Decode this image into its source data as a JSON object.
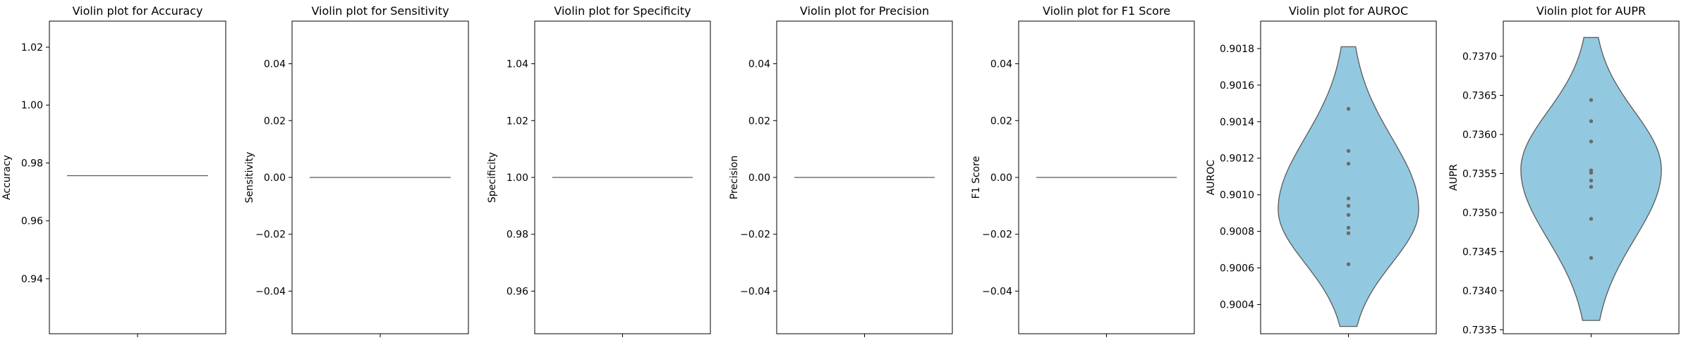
{
  "chart_data": [
    {
      "type": "violin",
      "title": "Violin plot for Accuracy",
      "ylabel": "Accuracy",
      "ylim": [
        0.921,
        1.029
      ],
      "yticks": [
        0.94,
        0.96,
        0.98,
        1.0,
        1.02
      ],
      "ytick_labels": [
        "0.94",
        "0.96",
        "0.98",
        "1.00",
        "1.02"
      ],
      "values": [
        0.9756
      ]
    },
    {
      "type": "violin",
      "title": "Violin plot for Sensitivity",
      "ylabel": "Sensitivity",
      "ylim": [
        -0.055,
        0.055
      ],
      "yticks": [
        -0.04,
        -0.02,
        0.0,
        0.02,
        0.04
      ],
      "ytick_labels": [
        "−0.04",
        "−0.02",
        "0.00",
        "0.02",
        "0.04"
      ],
      "values": [
        0.0
      ]
    },
    {
      "type": "violin",
      "title": "Violin plot for Specificity",
      "ylabel": "Specificity",
      "ylim": [
        0.945,
        1.055
      ],
      "yticks": [
        0.96,
        0.98,
        1.0,
        1.02,
        1.04
      ],
      "ytick_labels": [
        "0.96",
        "0.98",
        "1.00",
        "1.02",
        "1.04"
      ],
      "values": [
        1.0
      ]
    },
    {
      "type": "violin",
      "title": "Violin plot for Precision",
      "ylabel": "Precision",
      "ylim": [
        -0.055,
        0.055
      ],
      "yticks": [
        -0.04,
        -0.02,
        0.0,
        0.02,
        0.04
      ],
      "ytick_labels": [
        "−0.04",
        "−0.02",
        "0.00",
        "0.02",
        "0.04"
      ],
      "values": [
        0.0
      ]
    },
    {
      "type": "violin",
      "title": "Violin plot for F1 Score",
      "ylabel": "F1 Score",
      "ylim": [
        -0.055,
        0.055
      ],
      "yticks": [
        -0.04,
        -0.02,
        0.0,
        0.02,
        0.04
      ],
      "ytick_labels": [
        "−0.04",
        "−0.02",
        "0.00",
        "0.02",
        "0.04"
      ],
      "values": [
        0.0
      ]
    },
    {
      "type": "violin",
      "title": "Violin plot for AUROC",
      "ylabel": "AUROC",
      "ylim": [
        0.90024,
        0.90195
      ],
      "yticks": [
        0.9004,
        0.9006,
        0.9008,
        0.901,
        0.9012,
        0.9014,
        0.9016,
        0.9018
      ],
      "ytick_labels": [
        "0.9004",
        "0.9006",
        "0.9008",
        "0.9010",
        "0.9012",
        "0.9014",
        "0.9016",
        "0.9018"
      ],
      "values": [
        0.90147,
        0.90124,
        0.90117,
        0.90098,
        0.90094,
        0.90089,
        0.90082,
        0.90079,
        0.90062
      ],
      "violin_range": [
        0.90028,
        0.90181
      ],
      "violin_peak": 0.90092
    },
    {
      "type": "violin",
      "title": "Violin plot for AUPR",
      "ylabel": "AUPR",
      "ylim": [
        0.73345,
        0.73745
      ],
      "yticks": [
        0.7335,
        0.734,
        0.7345,
        0.735,
        0.7355,
        0.736,
        0.7365,
        0.737
      ],
      "ytick_labels": [
        "0.7335",
        "0.7340",
        "0.7345",
        "0.7350",
        "0.7355",
        "0.7360",
        "0.7365",
        "0.7370"
      ],
      "values": [
        0.73644,
        0.73617,
        0.73591,
        0.73554,
        0.73551,
        0.73541,
        0.73533,
        0.73492,
        0.73442
      ],
      "violin_range": [
        0.73362,
        0.73724
      ],
      "violin_peak": 0.73555
    }
  ]
}
